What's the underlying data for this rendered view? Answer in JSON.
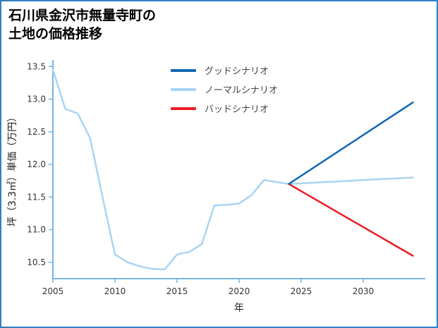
{
  "figure": {
    "background": "#ffffff",
    "border_color": "#2f80c3"
  },
  "title": {
    "line1": "石川県金沢市無量寺町の",
    "line2": "土地の価格推移"
  },
  "chart_data": {
    "type": "line",
    "title": "石川県金沢市無量寺町の土地の価格推移",
    "xlabel": "年",
    "ylabel": "坪（3.3㎡）単価（万円）",
    "xlim": [
      2005,
      2035
    ],
    "ylim": [
      10.25,
      13.6
    ],
    "x_ticks": [
      2005,
      2010,
      2015,
      2020,
      2025,
      2030
    ],
    "y_ticks": [
      10.5,
      11.0,
      11.5,
      12.0,
      12.5,
      13.0,
      13.5
    ],
    "grid": false,
    "legend_position": "upper center inside",
    "axis_color": "#77b5e5",
    "tick_label_color": "#333333",
    "series": [
      {
        "key": "good-scenario",
        "name": "グッドシナリオ",
        "color": "#1268b3",
        "points": [
          [
            2024,
            11.7
          ],
          [
            2034,
            12.95
          ]
        ]
      },
      {
        "key": "normal-scenario",
        "name": "ノーマルシナリオ",
        "color": "#a9d4f5",
        "points": [
          [
            2005,
            13.45
          ],
          [
            2006,
            12.85
          ],
          [
            2007,
            12.78
          ],
          [
            2008,
            12.4
          ],
          [
            2009,
            11.5
          ],
          [
            2010,
            10.62
          ],
          [
            2011,
            10.5
          ],
          [
            2012,
            10.44
          ],
          [
            2013,
            10.4
          ],
          [
            2014,
            10.39
          ],
          [
            2015,
            10.62
          ],
          [
            2016,
            10.66
          ],
          [
            2017,
            10.78
          ],
          [
            2018,
            11.37
          ],
          [
            2019,
            11.38
          ],
          [
            2020,
            11.4
          ],
          [
            2021,
            11.53
          ],
          [
            2022,
            11.76
          ],
          [
            2023,
            11.73
          ],
          [
            2024,
            11.7
          ],
          [
            2034,
            11.8
          ]
        ]
      },
      {
        "key": "bad-scenario",
        "name": "バッドシナリオ",
        "color": "#ed1c24",
        "points": [
          [
            2024,
            11.7
          ],
          [
            2034,
            10.6
          ]
        ]
      }
    ]
  }
}
